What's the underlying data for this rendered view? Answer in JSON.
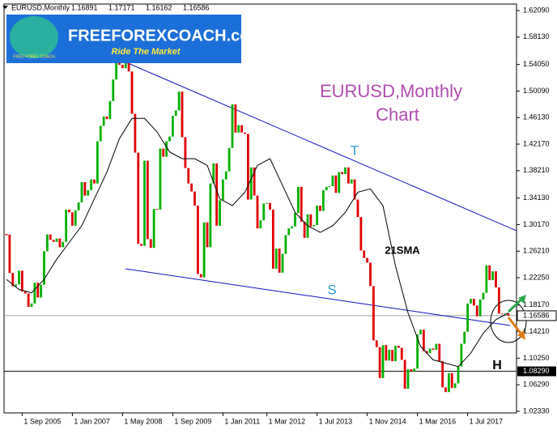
{
  "chart_data": {
    "type": "candlestick",
    "title": "EURUSD,Monthly",
    "header_values": [
      1.16891,
      1.17171,
      1.16162,
      1.16586
    ],
    "up_color": "#00b000",
    "down_color": "#e00000",
    "ylim": [
      1.0209,
      1.6306
    ],
    "yticks": [
      {
        "value": 1.6209,
        "label": "1.62090"
      },
      {
        "value": 1.5813,
        "label": "1.58130"
      },
      {
        "value": 1.5405,
        "label": "1.54050"
      },
      {
        "value": 1.5009,
        "label": "1.50090"
      },
      {
        "value": 1.4613,
        "label": "1.46130"
      },
      {
        "value": 1.4217,
        "label": "1.42170"
      },
      {
        "value": 1.3821,
        "label": "1.38210"
      },
      {
        "value": 1.3413,
        "label": "1.34130"
      },
      {
        "value": 1.3017,
        "label": "1.30170"
      },
      {
        "value": 1.2621,
        "label": "1.26210"
      },
      {
        "value": 1.2225,
        "label": "1.22250"
      },
      {
        "value": 1.1817,
        "label": "1.18170"
      },
      {
        "value": 1.1421,
        "label": "1.14210"
      },
      {
        "value": 1.1025,
        "label": "1.10250"
      },
      {
        "value": 1.0629,
        "label": "1.06290"
      },
      {
        "value": 1.0233,
        "label": "1.02330"
      }
    ],
    "hline": {
      "value": 1.0829,
      "label": "1.08290"
    },
    "last_price": {
      "value": 1.16586,
      "label": "1.16586"
    },
    "categories": [
      null,
      null,
      null,
      null,
      null,
      "1 Sep 2005",
      null,
      null,
      null,
      null,
      null,
      null,
      null,
      null,
      null,
      null,
      null,
      null,
      null,
      null,
      null,
      "1 Jan 2007",
      null,
      null,
      null,
      null,
      null,
      null,
      null,
      null,
      null,
      null,
      null,
      null,
      null,
      null,
      null,
      "1 May 2008",
      null,
      null,
      null,
      null,
      null,
      null,
      null,
      null,
      null,
      null,
      null,
      null,
      null,
      null,
      null,
      "1 Sep 2009",
      null,
      null,
      null,
      null,
      null,
      null,
      null,
      null,
      null,
      null,
      null,
      null,
      null,
      null,
      null,
      "1 Jan 2011",
      null,
      null,
      null,
      null,
      null,
      null,
      null,
      null,
      null,
      null,
      null,
      null,
      null,
      "1 Mar 2012",
      null,
      null,
      null,
      null,
      null,
      null,
      null,
      null,
      null,
      null,
      null,
      null,
      null,
      null,
      null,
      "1 Jul 2013",
      null,
      null,
      null,
      null,
      null,
      null,
      null,
      null,
      null,
      null,
      null,
      null,
      null,
      null,
      null,
      "1 Nov 2014",
      null,
      null,
      null,
      null,
      null,
      null,
      null,
      null,
      null,
      null,
      null,
      null,
      null,
      null,
      null,
      "1 Mar 2016",
      null,
      null,
      null,
      null,
      null,
      null,
      null,
      null,
      null,
      null,
      null,
      null,
      null,
      null,
      null,
      "1 Jul 2017",
      null,
      null,
      null,
      null,
      null,
      null,
      null,
      null,
      null,
      null,
      null,
      null,
      null
    ],
    "close": [
      1.2867,
      1.2295,
      1.2098,
      1.2125,
      1.233,
      1.202,
      1.199,
      1.179,
      1.184,
      1.215,
      1.193,
      1.212,
      1.262,
      1.287,
      1.279,
      1.276,
      1.281,
      1.268,
      1.276,
      1.324,
      1.32,
      1.3,
      1.323,
      1.335,
      1.365,
      1.345,
      1.353,
      1.369,
      1.363,
      1.426,
      1.449,
      1.463,
      1.459,
      1.486,
      1.518,
      1.55,
      1.54,
      1.535,
      1.545,
      1.53,
      1.467,
      1.409,
      1.273,
      1.27,
      1.397,
      1.28,
      1.267,
      1.325,
      1.324,
      1.415,
      1.403,
      1.426,
      1.433,
      1.464,
      1.472,
      1.5,
      1.432,
      1.386,
      1.363,
      1.351,
      1.33,
      1.228,
      1.223,
      1.305,
      1.268,
      1.363,
      1.393,
      1.3,
      1.338,
      1.369,
      1.381,
      1.416,
      1.481,
      1.439,
      1.45,
      1.439,
      1.437,
      1.339,
      1.387,
      1.345,
      1.296,
      1.308,
      1.333,
      1.334,
      1.324,
      1.236,
      1.266,
      1.23,
      1.258,
      1.286,
      1.296,
      1.299,
      1.319,
      1.358,
      1.306,
      1.282,
      1.317,
      1.299,
      1.301,
      1.33,
      1.322,
      1.353,
      1.358,
      1.359,
      1.375,
      1.349,
      1.38,
      1.377,
      1.387,
      1.363,
      1.369,
      1.339,
      1.313,
      1.263,
      1.252,
      1.245,
      1.21,
      1.129,
      1.119,
      1.073,
      1.122,
      1.099,
      1.115,
      1.098,
      1.121,
      1.118,
      1.1,
      1.057,
      1.086,
      1.083,
      1.087,
      1.138,
      1.145,
      1.113,
      1.11,
      1.117,
      1.115,
      1.124,
      1.098,
      1.059,
      1.052,
      1.08,
      1.058,
      1.065,
      1.09,
      1.124,
      1.142,
      1.184,
      1.191,
      1.181,
      1.165,
      1.19,
      1.2,
      1.241,
      1.219,
      1.232,
      1.208,
      1.169,
      1.168,
      1.169,
      1.16586
    ],
    "sma": {
      "x": [
        0,
        4,
        8,
        12,
        16,
        20,
        24,
        28,
        32,
        36,
        40,
        44,
        48,
        52,
        56,
        60,
        64,
        68,
        72,
        76,
        80,
        84,
        88,
        92,
        96,
        100,
        104,
        108,
        112,
        116,
        120,
        124,
        128,
        132,
        136,
        140,
        144,
        148,
        152,
        156,
        160
      ],
      "values": [
        1.22,
        1.205,
        1.2,
        1.22,
        1.25,
        1.275,
        1.3,
        1.34,
        1.38,
        1.43,
        1.46,
        1.46,
        1.44,
        1.41,
        1.4,
        1.4,
        1.39,
        1.34,
        1.33,
        1.35,
        1.39,
        1.4,
        1.36,
        1.32,
        1.3,
        1.29,
        1.3,
        1.32,
        1.35,
        1.355,
        1.33,
        1.24,
        1.17,
        1.12,
        1.1,
        1.095,
        1.09,
        1.11,
        1.14,
        1.16,
        1.17
      ]
    },
    "annotations": {
      "title1": "EURUSD,Monthly",
      "title2": "Chart",
      "t": "T",
      "s": "S",
      "sma_label": "21SMA",
      "h": "H"
    }
  },
  "logo": {
    "name": "FREEFOREXCOACH.com",
    "tagline": "Ride The Market",
    "small": "FREE FOREX COACH"
  }
}
